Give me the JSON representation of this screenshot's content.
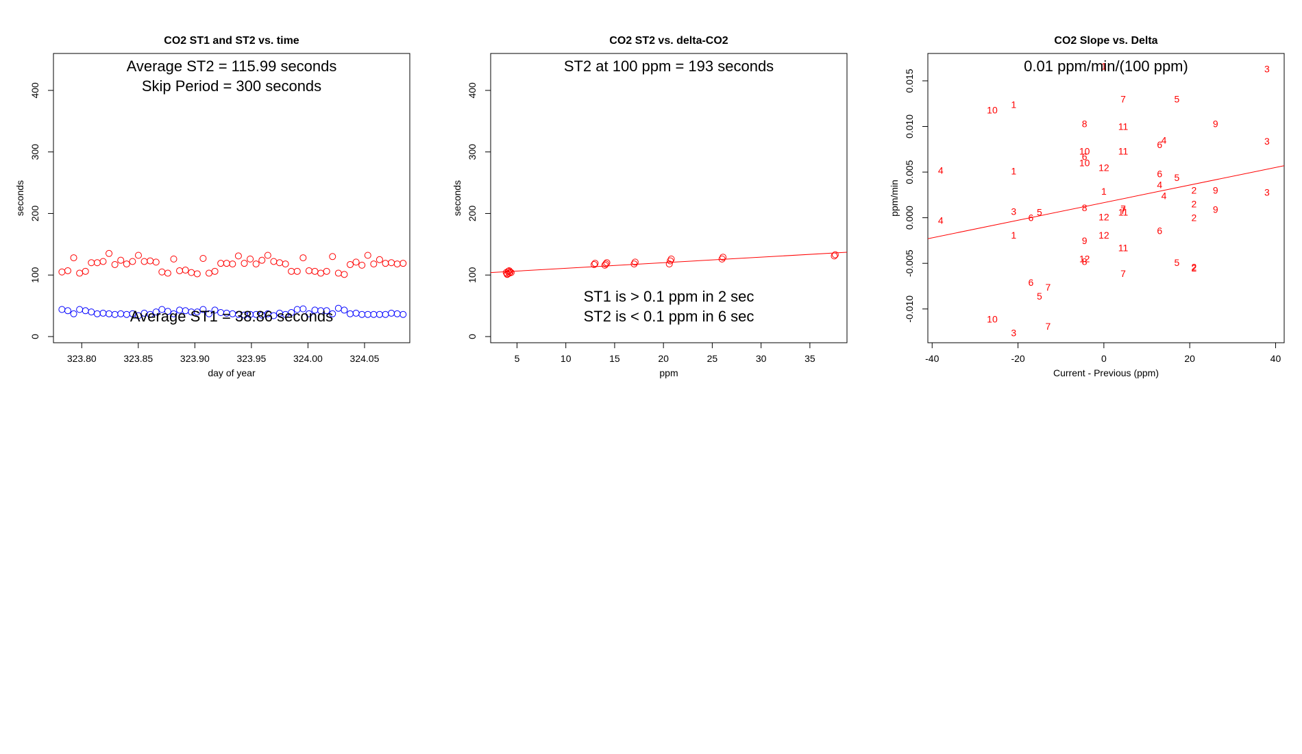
{
  "chart_data": [
    {
      "type": "scatter",
      "title": "CO2 ST1 and ST2 vs. time",
      "xlabel": "day of year",
      "ylabel": "seconds",
      "xlim": [
        323.775,
        324.09
      ],
      "ylim": [
        -10,
        460
      ],
      "xticks": [
        "323.80",
        "323.85",
        "323.90",
        "323.95",
        "324.00",
        "324.05"
      ],
      "yticks": [
        "0",
        "100",
        "200",
        "300",
        "400"
      ],
      "annotations": {
        "avg_st2": "Average ST2 =  115.99  seconds",
        "skip_period": "Skip Period =  300  seconds",
        "avg_st1": "Average ST1 =  38.86  seconds"
      },
      "series": [
        {
          "name": "ST2",
          "color": "#ff0000",
          "x": [
            323.7825,
            323.7877,
            323.7929,
            323.7981,
            323.8033,
            323.8085,
            323.8137,
            323.8189,
            323.8241,
            323.8293,
            323.8345,
            323.8397,
            323.8449,
            323.8501,
            323.8553,
            323.8605,
            323.8657,
            323.8709,
            323.8761,
            323.8813,
            323.8865,
            323.8917,
            323.8969,
            323.9021,
            323.9073,
            323.9125,
            323.9177,
            323.9229,
            323.9281,
            323.9333,
            323.9385,
            323.9437,
            323.9489,
            323.9541,
            323.9593,
            323.9645,
            323.9697,
            323.9749,
            323.9801,
            323.9853,
            323.9905,
            323.9957,
            324.0009,
            324.0061,
            324.0113,
            324.0165,
            324.0217,
            324.0269,
            324.0321,
            324.0373,
            324.0425,
            324.0477,
            324.0529,
            324.0581,
            324.0633,
            324.0685,
            324.0737,
            324.0789,
            324.0841
          ],
          "y": [
            105,
            107,
            128,
            103,
            106,
            120,
            120,
            122,
            135,
            117,
            124,
            118,
            122,
            132,
            122,
            123,
            121,
            105,
            103,
            126,
            107,
            108,
            104,
            102,
            127,
            103,
            106,
            119,
            119,
            118,
            131,
            119,
            126,
            118,
            124,
            132,
            122,
            120,
            118,
            106,
            106,
            128,
            107,
            106,
            103,
            106,
            130,
            103,
            101,
            117,
            121,
            116,
            132,
            118,
            125,
            119,
            120,
            118,
            119
          ]
        },
        {
          "name": "ST1",
          "color": "#0000ff",
          "x": [
            323.7825,
            323.7877,
            323.7929,
            323.7981,
            323.8033,
            323.8085,
            323.8137,
            323.8189,
            323.8241,
            323.8293,
            323.8345,
            323.8397,
            323.8449,
            323.8501,
            323.8553,
            323.8605,
            323.8657,
            323.8709,
            323.8761,
            323.8813,
            323.8865,
            323.8917,
            323.8969,
            323.9021,
            323.9073,
            323.9125,
            323.9177,
            323.9229,
            323.9281,
            323.9333,
            323.9385,
            323.9437,
            323.9489,
            323.9541,
            323.9593,
            323.9645,
            323.9697,
            323.9749,
            323.9801,
            323.9853,
            323.9905,
            323.9957,
            324.0009,
            324.0061,
            324.0113,
            324.0165,
            324.0217,
            324.0269,
            324.0321,
            324.0373,
            324.0425,
            324.0477,
            324.0529,
            324.0581,
            324.0633,
            324.0685,
            324.0737,
            324.0789,
            324.0841
          ],
          "y": [
            44,
            42,
            37,
            44,
            42,
            40,
            37,
            38,
            37,
            36,
            37,
            36,
            37,
            34,
            38,
            36,
            40,
            44,
            41,
            37,
            43,
            42,
            40,
            40,
            44,
            37,
            43,
            39,
            38,
            37,
            36,
            35,
            36,
            36,
            35,
            37,
            34,
            38,
            36,
            39,
            44,
            45,
            37,
            43,
            42,
            42,
            37,
            46,
            43,
            37,
            38,
            36,
            36,
            36,
            36,
            36,
            38,
            37,
            36
          ]
        }
      ]
    },
    {
      "type": "scatter",
      "title": "CO2 ST2 vs. delta-CO2",
      "xlabel": "ppm",
      "ylabel": "seconds",
      "xlim": [
        2.3,
        38.8
      ],
      "ylim": [
        -10,
        460
      ],
      "xticks": [
        "5",
        "10",
        "15",
        "20",
        "25",
        "30",
        "35"
      ],
      "yticks": [
        "0",
        "100",
        "200",
        "300",
        "400"
      ],
      "annotations": {
        "st2_100": "ST2 at 100 ppm =  193  seconds",
        "st1_note": "ST1 is > 0.1 ppm in 2 sec",
        "st2_note": "ST2 is < 0.1 ppm in 6 sec"
      },
      "fit_line": {
        "x": [
          2.3,
          38.8
        ],
        "y": [
          104,
          137
        ]
      },
      "series": [
        {
          "name": "ST2",
          "color": "#ff0000",
          "x": [
            3.9,
            4.0,
            4.1,
            4.2,
            4.3,
            4.0,
            4.2,
            4.4,
            12.9,
            13.0,
            14.0,
            14.1,
            14.2,
            17.0,
            17.1,
            20.6,
            20.7,
            20.8,
            26.0,
            26.1,
            37.5,
            37.6
          ],
          "y": [
            104,
            101,
            106,
            103,
            105,
            102,
            107,
            104,
            117,
            119,
            116,
            118,
            120,
            118,
            121,
            118,
            123,
            126,
            126,
            129,
            131,
            133
          ]
        }
      ]
    },
    {
      "type": "scatter",
      "title": "CO2 Slope vs. Delta",
      "xlabel": "Current - Previous (ppm)",
      "ylabel": "ppm/min",
      "xlim": [
        -41,
        42
      ],
      "ylim": [
        -0.0137,
        0.018
      ],
      "xticks": [
        "-40",
        "-20",
        "0",
        "20",
        "40"
      ],
      "yticks": [
        "-0.010",
        "-0.005",
        "0.000",
        "0.005",
        "0.010",
        "0.015"
      ],
      "annotations": {
        "slope": "0.01  ppm/min/(100 ppm)"
      },
      "fit_line": {
        "x": [
          -41,
          42
        ],
        "y": [
          -0.0023,
          0.0057
        ]
      },
      "series": [
        {
          "name": "labels",
          "color": "#ff0000",
          "x": [
            0,
            -21,
            -26,
            -38,
            -38,
            -21,
            -21,
            -21,
            -26,
            -21,
            -4.5,
            -4.5,
            -4.5,
            -4.5,
            -4.5,
            -4.5,
            -4.5,
            -4.5,
            0,
            0,
            0,
            0,
            4.5,
            4.5,
            4.5,
            4.5,
            4.5,
            4.5,
            4.5,
            4.5,
            -17,
            -15,
            -17,
            -13,
            -15,
            -13,
            13,
            13,
            13,
            13,
            14,
            14,
            17,
            17,
            17,
            21,
            21,
            21,
            21,
            21,
            26,
            26,
            26,
            38,
            38,
            38
          ],
          "y": [
            0.0166,
            0.0124,
            0.0118,
            0.0052,
            -0.0003,
            0.0051,
            0.0007,
            -0.0019,
            -0.0111,
            -0.0126,
            0.0103,
            0.0073,
            0.006,
            0.0067,
            0.0011,
            -0.0025,
            -0.0045,
            -0.0048,
            0.0055,
            0.0029,
            0.0001,
            -0.0019,
            0.013,
            0.01,
            0.0073,
            0.0008,
            0.0006,
            0.001,
            -0.0033,
            -0.0061,
            -0.0,
            0.0006,
            -0.0071,
            -0.0076,
            -0.0086,
            -0.0119,
            0.008,
            0.0048,
            0.0036,
            -0.0014,
            0.0085,
            0.0024,
            0.013,
            0.0044,
            -0.0049,
            0.003,
            0.0015,
            0.0,
            -0.0054,
            -0.0055,
            0.0103,
            0.003,
            0.0009,
            0.0163,
            0.0084,
            0.0028
          ],
          "labels": [
            "1",
            "1",
            "10",
            "4",
            "4",
            "1",
            "3",
            "1",
            "10",
            "3",
            "8",
            "10",
            "10",
            "6",
            "8",
            "9",
            "12",
            "8",
            "12",
            "1",
            "12",
            "12",
            "7",
            "11",
            "11",
            "7",
            "11",
            "7",
            "11",
            "7",
            "6",
            "5",
            "6",
            "7",
            "5",
            "7",
            "6",
            "6",
            "4",
            "6",
            "4",
            "4",
            "5",
            "5",
            "5",
            "2",
            "2",
            "2",
            "2",
            "2",
            "9",
            "9",
            "9",
            "3",
            "3",
            "3"
          ]
        }
      ]
    }
  ]
}
